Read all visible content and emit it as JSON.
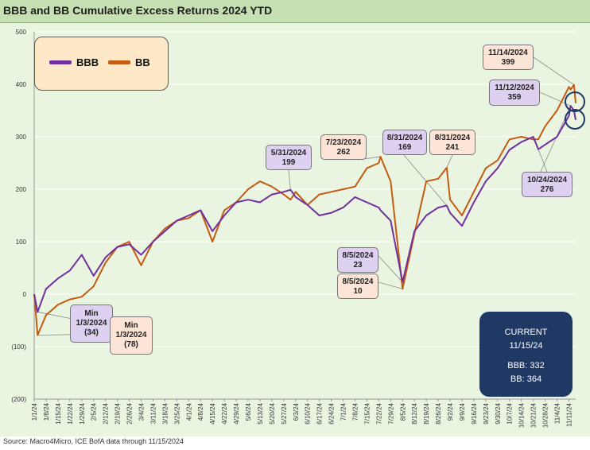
{
  "title": "BBB and BB Cumulative Excess Returns 2024 YTD",
  "source": "Source: Macro4Micro, ICE BofA     data through 11/15/2024",
  "colors": {
    "bbb": "#7030a0",
    "bb": "#c55a11"
  },
  "legend": {
    "bbb_label": "BBB",
    "bb_label": "BB"
  },
  "current": {
    "title": "CURRENT",
    "date": "11/15/24",
    "bbb": "BBB: 332",
    "bb": "BB: 364"
  },
  "annotations": {
    "min_bbb": {
      "label": "Min",
      "date": "1/3/2024",
      "value": "(34)"
    },
    "min_bb": {
      "label": "Min",
      "date": "1/3/2024",
      "value": "(78)"
    },
    "bbb_0531": {
      "date": "5/31/2024",
      "value": "199"
    },
    "bb_0723": {
      "date": "7/23/2024",
      "value": "262"
    },
    "bbb_0831": {
      "date": "8/31/2024",
      "value": "169"
    },
    "bb_0831": {
      "date": "8/31/2024",
      "value": "241"
    },
    "bbb_0805": {
      "date": "8/5/2024",
      "value": "23"
    },
    "bb_0805": {
      "date": "8/5/2024",
      "value": "10"
    },
    "bbb_1024": {
      "date": "10/24/2024",
      "value": "276"
    },
    "bbb_1112": {
      "date": "11/12/2024",
      "value": "359"
    },
    "bb_1114": {
      "date": "11/14/2024",
      "value": "399"
    }
  },
  "chart_data": {
    "type": "line",
    "title": "BBB and BB Cumulative Excess Returns 2024 YTD",
    "ylim": [
      -200,
      500
    ],
    "yticks": [
      -200,
      -100,
      0,
      100,
      200,
      300,
      400,
      500
    ],
    "ytick_labels": [
      "(200)",
      "(100)",
      "0",
      "100",
      "200",
      "300",
      "400",
      "500"
    ],
    "xtick_labels": [
      "1/1/24",
      "1/8/24",
      "1/15/24",
      "1/22/24",
      "1/29/24",
      "2/5/24",
      "2/12/24",
      "2/19/24",
      "2/26/24",
      "3/4/24",
      "3/11/24",
      "3/18/24",
      "3/25/24",
      "4/1/24",
      "4/8/24",
      "4/15/24",
      "4/22/24",
      "4/29/24",
      "5/6/24",
      "5/13/24",
      "5/20/24",
      "5/27/24",
      "6/3/24",
      "6/10/24",
      "6/17/24",
      "6/24/24",
      "7/1/24",
      "7/8/24",
      "7/15/24",
      "7/22/24",
      "7/29/24",
      "8/5/24",
      "8/12/24",
      "8/19/24",
      "8/26/24",
      "9/2/24",
      "9/9/24",
      "9/16/24",
      "9/23/24",
      "9/30/24",
      "10/7/24",
      "10/14/24",
      "10/21/24",
      "10/28/24",
      "11/4/24",
      "11/11/24"
    ],
    "x": [
      "1/1/24",
      "1/3/24",
      "1/8/24",
      "1/15/24",
      "1/22/24",
      "1/29/24",
      "2/5/24",
      "2/12/24",
      "2/19/24",
      "2/26/24",
      "3/4/24",
      "3/11/24",
      "3/18/24",
      "3/25/24",
      "4/1/24",
      "4/8/24",
      "4/15/24",
      "4/22/24",
      "4/29/24",
      "5/6/24",
      "5/13/24",
      "5/20/24",
      "5/27/24",
      "5/31/24",
      "6/3/24",
      "6/10/24",
      "6/17/24",
      "6/24/24",
      "7/1/24",
      "7/8/24",
      "7/15/24",
      "7/22/24",
      "7/23/24",
      "7/29/24",
      "8/5/24",
      "8/12/24",
      "8/19/24",
      "8/26/24",
      "8/31/24",
      "9/2/24",
      "9/9/24",
      "9/16/24",
      "9/23/24",
      "9/30/24",
      "10/7/24",
      "10/14/24",
      "10/21/24",
      "10/24/24",
      "10/28/24",
      "11/4/24",
      "11/11/24",
      "11/12/24",
      "11/14/24",
      "11/15/24"
    ],
    "series": [
      {
        "name": "BBB",
        "values": [
          0,
          -34,
          10,
          30,
          45,
          75,
          35,
          70,
          90,
          95,
          75,
          100,
          120,
          140,
          150,
          160,
          120,
          150,
          175,
          180,
          175,
          190,
          195,
          199,
          185,
          170,
          150,
          155,
          165,
          185,
          175,
          165,
          160,
          140,
          23,
          120,
          150,
          165,
          169,
          155,
          130,
          175,
          215,
          240,
          275,
          290,
          300,
          276,
          285,
          300,
          340,
          359,
          350,
          332
        ]
      },
      {
        "name": "BB",
        "values": [
          0,
          -78,
          -40,
          -20,
          -10,
          -5,
          15,
          60,
          90,
          100,
          55,
          100,
          125,
          140,
          145,
          160,
          100,
          160,
          175,
          200,
          215,
          205,
          190,
          180,
          195,
          170,
          190,
          195,
          200,
          205,
          240,
          250,
          262,
          215,
          10,
          115,
          215,
          220,
          241,
          180,
          150,
          195,
          240,
          255,
          295,
          300,
          295,
          295,
          320,
          350,
          395,
          390,
          399,
          364
        ]
      }
    ]
  }
}
